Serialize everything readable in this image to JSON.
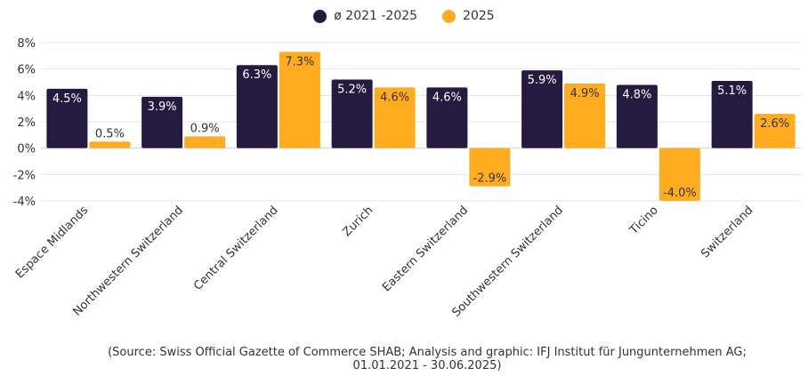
{
  "chart_data": {
    "type": "bar",
    "categories": [
      "Espace Midlands",
      "Northwestern Switzerland",
      "Central Switzerland",
      "Zurich",
      "Eastern Switzerland",
      "Southwestern Switzerland",
      "Ticino",
      "Switzerland"
    ],
    "series": [
      {
        "name": "ø 2021 -2025",
        "color": "#251a3f",
        "values": [
          4.5,
          3.9,
          6.3,
          5.2,
          4.6,
          5.9,
          4.8,
          5.1
        ]
      },
      {
        "name": "2025",
        "color": "#ffad1f",
        "values": [
          0.5,
          0.9,
          7.3,
          4.6,
          -2.9,
          4.9,
          -4.0,
          2.6
        ]
      }
    ],
    "y_ticks": [
      8,
      6,
      4,
      2,
      0,
      -2,
      -4
    ],
    "ylim": [
      -4,
      8
    ],
    "value_format": "percent",
    "grid": true,
    "legend_position": "top-center"
  },
  "source": {
    "line1": "(Source: Swiss Official Gazette of Commerce SHAB; Analysis and graphic: IFJ Institut für Jungunternehmen AG;",
    "line2": "01.01.2021 - 30.06.2025)"
  }
}
